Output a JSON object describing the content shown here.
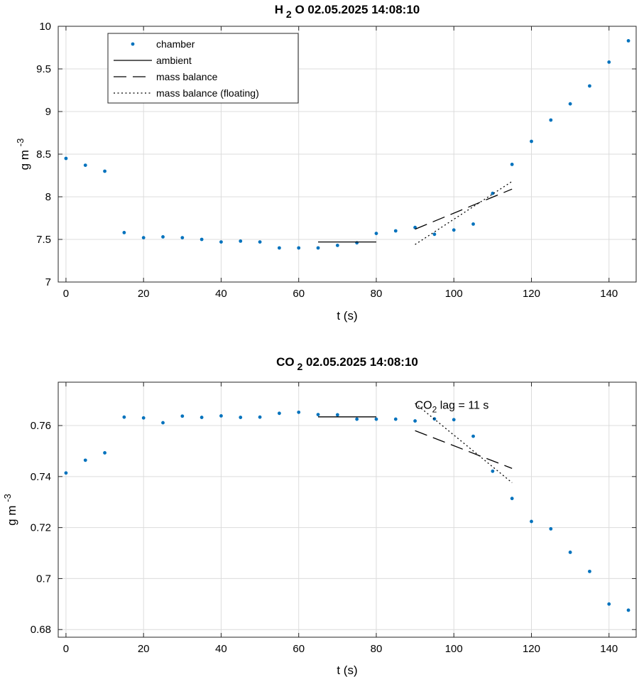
{
  "chart_data": [
    {
      "type": "scatter",
      "title": "H 2 O  02.05.2025 14:08:10",
      "title_parts": {
        "pre": "H",
        "sub": "2",
        "post": "O  02.05.2025 14:08:10"
      },
      "xlabel": "t (s)",
      "ylabel": "g m -3",
      "ylabel_parts": {
        "base": "g m",
        "sup": "-3"
      },
      "xlim": [
        -2,
        147
      ],
      "ylim": [
        7,
        10
      ],
      "xticks": [
        0,
        20,
        40,
        60,
        80,
        100,
        120,
        140
      ],
      "xtick_labels": [
        "0",
        "20",
        "40",
        "60",
        "80",
        "100",
        "120",
        "140"
      ],
      "yticks": [
        7,
        7.5,
        8,
        8.5,
        9,
        9.5,
        10
      ],
      "ytick_labels": [
        "7",
        "7.5",
        "8",
        "8.5",
        "9",
        "9.5",
        "10"
      ],
      "grid": true,
      "legend_position": "top-left",
      "legend": [
        "chamber",
        "ambient",
        "mass balance",
        "mass balance (floating)"
      ],
      "series": [
        {
          "name": "chamber",
          "style": "dots",
          "color": "#0072BD",
          "x": [
            0,
            5,
            10,
            15,
            20,
            25,
            30,
            35,
            40,
            45,
            50,
            55,
            60,
            65,
            70,
            75,
            80,
            85,
            90,
            95,
            100,
            105,
            110,
            115,
            120,
            125,
            130,
            135,
            140,
            145
          ],
          "y": [
            8.45,
            8.37,
            8.3,
            7.58,
            7.52,
            7.53,
            7.52,
            7.5,
            7.47,
            7.48,
            7.47,
            7.4,
            7.4,
            7.4,
            7.43,
            7.46,
            7.57,
            7.6,
            7.64,
            7.56,
            7.61,
            7.68,
            8.04,
            8.38,
            8.65,
            8.9,
            9.09,
            9.3,
            9.58,
            9.83
          ]
        },
        {
          "name": "ambient",
          "style": "solid",
          "color": "#000000",
          "x": [
            65,
            80
          ],
          "y": [
            7.47,
            7.47
          ]
        },
        {
          "name": "mass balance",
          "style": "dashed",
          "color": "#000000",
          "x": [
            90,
            115
          ],
          "y": [
            7.62,
            8.09
          ]
        },
        {
          "name": "mass balance (floating)",
          "style": "dotted",
          "color": "#000000",
          "x": [
            90,
            115
          ],
          "y": [
            7.44,
            8.18
          ]
        }
      ]
    },
    {
      "type": "scatter",
      "title": "CO 2  02.05.2025 14:08:10",
      "title_parts": {
        "pre": "CO",
        "sub": "2",
        "post": "  02.05.2025 14:08:10"
      },
      "xlabel": "t (s)",
      "ylabel": "g m -3",
      "ylabel_parts": {
        "base": "g m",
        "sup": "-3"
      },
      "xlim": [
        -2,
        147
      ],
      "ylim": [
        0.677,
        0.777
      ],
      "xticks": [
        0,
        20,
        40,
        60,
        80,
        100,
        120,
        140
      ],
      "xtick_labels": [
        "0",
        "20",
        "40",
        "60",
        "80",
        "100",
        "120",
        "140"
      ],
      "yticks": [
        0.68,
        0.7,
        0.72,
        0.74,
        0.76
      ],
      "ytick_labels": [
        "0.68",
        "0.7",
        "0.72",
        "0.74",
        "0.76"
      ],
      "grid": true,
      "annotation": {
        "pre": "CO",
        "sub": "2",
        "post": " lag = 11 s",
        "x": 90,
        "y": 0.7705
      },
      "series": [
        {
          "name": "chamber",
          "style": "dots",
          "color": "#0072BD",
          "x": [
            0,
            5,
            10,
            15,
            20,
            25,
            30,
            35,
            40,
            45,
            50,
            55,
            60,
            65,
            70,
            75,
            80,
            85,
            90,
            95,
            100,
            105,
            110,
            115,
            120,
            125,
            130,
            135,
            140,
            145
          ],
          "y": [
            0.7414,
            0.7464,
            0.7493,
            0.7633,
            0.763,
            0.7611,
            0.7637,
            0.7632,
            0.7638,
            0.7632,
            0.7633,
            0.7648,
            0.7652,
            0.7643,
            0.7642,
            0.7625,
            0.7625,
            0.7625,
            0.7618,
            0.7626,
            0.7623,
            0.7558,
            0.7421,
            0.7314,
            0.7224,
            0.7195,
            0.7103,
            0.7028,
            0.69,
            0.6876
          ]
        },
        {
          "name": "ambient",
          "style": "solid",
          "color": "#000000",
          "x": [
            65,
            80
          ],
          "y": [
            0.7634,
            0.7634
          ]
        },
        {
          "name": "mass balance",
          "style": "dashed",
          "color": "#000000",
          "x": [
            90,
            115
          ],
          "y": [
            0.758,
            0.7432
          ]
        },
        {
          "name": "mass balance (floating)",
          "style": "dotted",
          "color": "#000000",
          "x": [
            90,
            115
          ],
          "y": [
            0.7687,
            0.7376
          ]
        }
      ]
    }
  ]
}
